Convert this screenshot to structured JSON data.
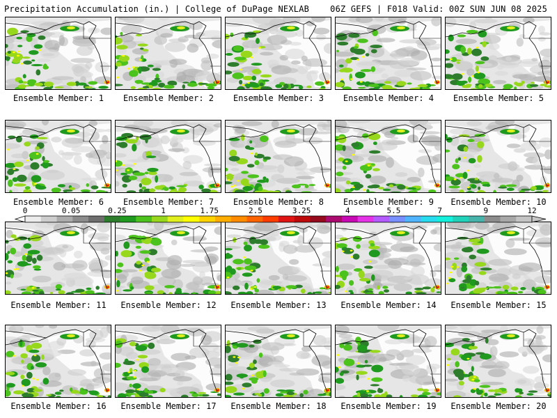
{
  "header": {
    "left": "Precipitation Accumulation (in.) | College of DuPage NEXLAB",
    "right": "06Z GEFS | F018 Valid: 00Z SUN JUN 08 2025"
  },
  "panels": [
    {
      "caption": "Ensemble Member: 1"
    },
    {
      "caption": "Ensemble Member: 2"
    },
    {
      "caption": "Ensemble Member: 3"
    },
    {
      "caption": "Ensemble Member: 4"
    },
    {
      "caption": "Ensemble Member: 5"
    },
    {
      "caption": "Ensemble Member: 6"
    },
    {
      "caption": "Ensemble Member: 7"
    },
    {
      "caption": "Ensemble Member: 8"
    },
    {
      "caption": "Ensemble Member: 9"
    },
    {
      "caption": "Ensemble Member: 10"
    },
    {
      "caption": "Ensemble Member: 11"
    },
    {
      "caption": "Ensemble Member: 12"
    },
    {
      "caption": "Ensemble Member: 13"
    },
    {
      "caption": "Ensemble Member: 14"
    },
    {
      "caption": "Ensemble Member: 15"
    },
    {
      "caption": "Ensemble Member: 16"
    },
    {
      "caption": "Ensemble Member: 17"
    },
    {
      "caption": "Ensemble Member: 18"
    },
    {
      "caption": "Ensemble Member: 19"
    },
    {
      "caption": "Ensemble Member: 20"
    }
  ],
  "colorbar": {
    "tick_labels": [
      "0",
      "0.05",
      "0.25",
      "1",
      "1.75",
      "2.5",
      "3.25",
      "4",
      "5.5",
      "7",
      "9",
      "12"
    ],
    "colors": [
      "#ececec",
      "#cdcdcd",
      "#ababab",
      "#8c8c8c",
      "#6e6e6e",
      "#2d7d2d",
      "#1f9a1f",
      "#4cc21c",
      "#98d81c",
      "#e2ef1e",
      "#ffff00",
      "#ffd200",
      "#ffae00",
      "#ff8c00",
      "#ff6400",
      "#ff3c00",
      "#e11414",
      "#be0a0a",
      "#960a1e",
      "#ab0a6e",
      "#c80ab4",
      "#e632e6",
      "#b45aff",
      "#7890ff",
      "#50b4ff",
      "#28dcf0",
      "#14f0dc",
      "#20d2b9",
      "#46b4aa",
      "#8c8c8c",
      "#a8a8a8",
      "#c4c4c4"
    ],
    "land_color": "#ffffff",
    "background_color": "#e6e6e6"
  }
}
